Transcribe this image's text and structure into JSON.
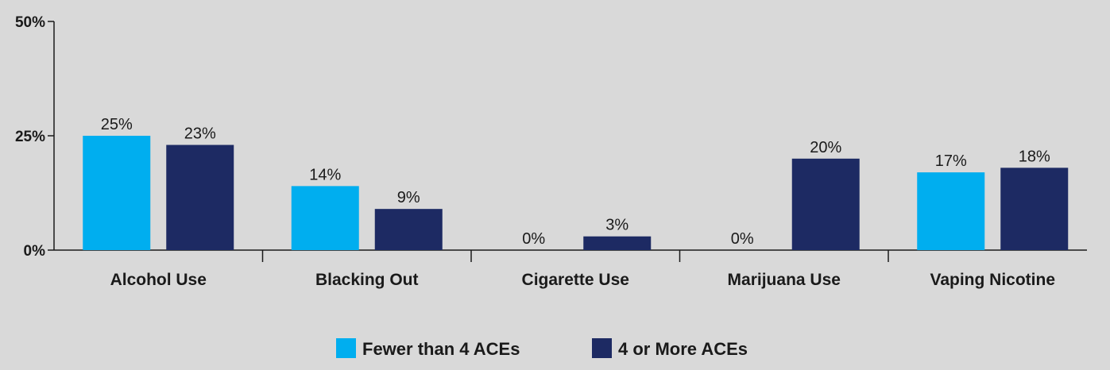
{
  "chart_data": {
    "type": "bar",
    "categories": [
      "Alcohol Use",
      "Blacking Out",
      "Cigarette Use",
      "Marijuana Use",
      "Vaping Nicotine"
    ],
    "series": [
      {
        "name": "Fewer than 4 ACEs",
        "color": "#00aeef",
        "values": [
          25,
          14,
          0,
          0,
          17
        ],
        "labels": [
          "25%",
          "14%",
          "0%",
          "0%",
          "17%"
        ]
      },
      {
        "name": "4 or More ACEs",
        "color": "#1d2a63",
        "values": [
          23,
          9,
          3,
          20,
          18
        ],
        "labels": [
          "23%",
          "9%",
          "3%",
          "20%",
          "18%"
        ]
      }
    ],
    "ylim": [
      0,
      50
    ],
    "yticks": [
      0,
      25,
      50
    ],
    "ytick_labels": [
      "0%",
      "25%",
      "50%"
    ],
    "grid": false,
    "legend_position": "bottom-center"
  }
}
